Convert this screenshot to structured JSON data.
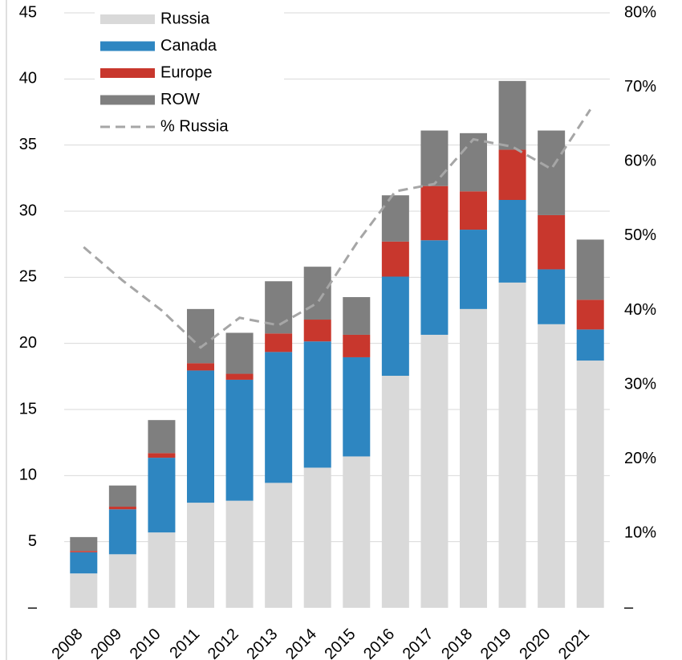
{
  "chart_data": {
    "type": "stacked_bar_line",
    "categories": [
      "2008",
      "2009",
      "2010",
      "2011",
      "2012",
      "2013",
      "2014",
      "2015",
      "2016",
      "2017",
      "2018",
      "2019",
      "2020",
      "2021"
    ],
    "series": [
      {
        "name": "Russia",
        "color": "#d9d9d9",
        "values": [
          2.6,
          4.05,
          5.7,
          7.95,
          8.1,
          9.45,
          10.6,
          11.45,
          17.55,
          20.65,
          22.6,
          24.6,
          21.45,
          18.7
        ]
      },
      {
        "name": "Canada",
        "color": "#2e86c1",
        "values": [
          1.6,
          3.4,
          5.65,
          10,
          9.15,
          9.9,
          9.55,
          7.5,
          7.5,
          7.15,
          6.0,
          6.25,
          4.15,
          2.35
        ]
      },
      {
        "name": "Europe",
        "color": "#c8372d",
        "values": [
          0.1,
          0.2,
          0.35,
          0.55,
          0.45,
          1.4,
          1.65,
          1.7,
          2.65,
          4.1,
          2.9,
          3.8,
          4.1,
          2.25
        ]
      },
      {
        "name": "ROW",
        "color": "#7f7f7f",
        "values": [
          1.05,
          1.6,
          2.5,
          4.1,
          3.1,
          3.95,
          4.0,
          2.85,
          3.5,
          4.2,
          4.4,
          5.2,
          6.4,
          4.55
        ]
      },
      {
        "name": "% Russia",
        "color": "#a6a6a6",
        "type": "line",
        "line_style": "dashed",
        "axis": "y2",
        "values": [
          48.5,
          44,
          40,
          35,
          39,
          38,
          41,
          49,
          56,
          57,
          63,
          62,
          59,
          67
        ]
      }
    ],
    "ylim": [
      0,
      45
    ],
    "yticks": [
      {
        "value": 0,
        "label": "–"
      },
      5,
      10,
      15,
      20,
      25,
      30,
      35,
      40,
      45
    ],
    "y2lim": [
      0,
      80
    ],
    "y2ticks": [
      {
        "value": 0,
        "label": "–"
      },
      {
        "value": 10,
        "label": "10%"
      },
      {
        "value": 20,
        "label": "20%"
      },
      {
        "value": 30,
        "label": "30%"
      },
      {
        "value": 40,
        "label": "40%"
      },
      {
        "value": 50,
        "label": "50%"
      },
      {
        "value": 60,
        "label": "60%"
      },
      {
        "value": 70,
        "label": "70%"
      },
      {
        "value": 80,
        "label": "80%"
      }
    ],
    "grid": true,
    "legend": "top-left"
  }
}
